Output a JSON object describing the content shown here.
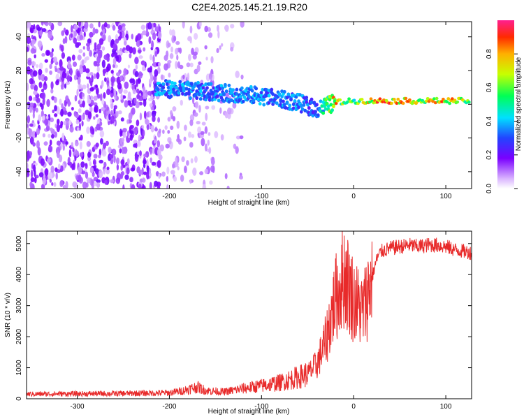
{
  "title": "C2E4.2025.145.21.19.R20",
  "chart_data": [
    {
      "type": "heatmap",
      "xlabel": "Height of straight line (km)",
      "ylabel": "Frequency (Hz)",
      "xlim": [
        -355,
        128
      ],
      "ylim": [
        -50,
        49
      ],
      "xticks": [
        -300,
        -200,
        -100,
        0,
        100
      ],
      "yticks": [
        -40,
        -20,
        0,
        20,
        40
      ],
      "colorbar": {
        "label": "Normalized spectral amplitude",
        "range": [
          0,
          1
        ],
        "ticks": [
          0.0,
          0.2,
          0.4,
          0.6,
          0.8
        ]
      },
      "ridge": {
        "x": [
          -200,
          -150,
          -100,
          -60,
          -40,
          -20,
          0,
          25,
          50,
          75,
          100,
          125
        ],
        "freq": [
          9,
          7,
          5,
          1,
          -3,
          1,
          2,
          2,
          2,
          2,
          2,
          2
        ],
        "amplitude": [
          0.4,
          0.4,
          0.4,
          0.4,
          0.35,
          0.9,
          0.6,
          0.95,
          0.95,
          0.8,
          0.9,
          0.7
        ]
      },
      "grid": false
    },
    {
      "type": "line",
      "xlabel": "Height of straight line (km)",
      "ylabel": "SNR (10 * v/v)",
      "xlim": [
        -355,
        128
      ],
      "ylim": [
        0,
        5400
      ],
      "xticks": [
        -300,
        -200,
        -100,
        0,
        100
      ],
      "yticks": [
        0,
        1000,
        2000,
        3000,
        4000,
        5000
      ],
      "color": "#e82a2a",
      "x": [
        -355,
        -300,
        -250,
        -200,
        -185,
        -170,
        -160,
        -140,
        -120,
        -100,
        -80,
        -60,
        -50,
        -40,
        -35,
        -30,
        -25,
        -20,
        -15,
        -10,
        0,
        10,
        20,
        25,
        30,
        40,
        50,
        60,
        70,
        80,
        90,
        100,
        110,
        120,
        128
      ],
      "y": [
        150,
        160,
        170,
        190,
        260,
        380,
        260,
        220,
        330,
        420,
        520,
        700,
        800,
        1100,
        1500,
        1900,
        2600,
        3200,
        3600,
        4000,
        3200,
        2800,
        3900,
        4500,
        4750,
        4850,
        4900,
        4950,
        4900,
        4950,
        4950,
        4900,
        4800,
        4750,
        4700
      ],
      "grid": false
    }
  ]
}
